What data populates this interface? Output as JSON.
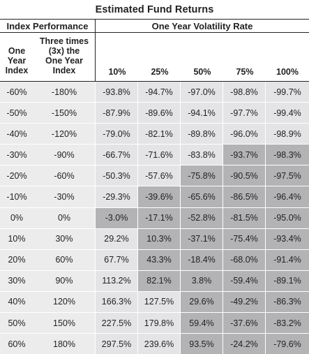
{
  "title": "Estimated Fund Returns",
  "group_index": "Index Performance",
  "group_vol": "One Year Volatility Rate",
  "col_index": [
    "One",
    "Year",
    "Index"
  ],
  "col_index3x": [
    "Three times",
    "(3x) the",
    "One Year",
    "Index"
  ],
  "vol_headers": [
    "10%",
    "25%",
    "50%",
    "75%",
    "100%"
  ],
  "rows": [
    {
      "idx": "-60%",
      "idx3": "-180%",
      "v": [
        "-93.8%",
        "-94.7%",
        "-97.0%",
        "-98.8%",
        "-99.7%"
      ],
      "s": [
        "l",
        "l",
        "l",
        "l",
        "l"
      ]
    },
    {
      "idx": "-50%",
      "idx3": "-150%",
      "v": [
        "-87.9%",
        "-89.6%",
        "-94.1%",
        "-97.7%",
        "-99.4%"
      ],
      "s": [
        "l",
        "l",
        "l",
        "l",
        "l"
      ]
    },
    {
      "idx": "-40%",
      "idx3": "-120%",
      "v": [
        "-79.0%",
        "-82.1%",
        "-89.8%",
        "-96.0%",
        "-98.9%"
      ],
      "s": [
        "l",
        "l",
        "l",
        "l",
        "l"
      ]
    },
    {
      "idx": "-30%",
      "idx3": "-90%",
      "v": [
        "-66.7%",
        "-71.6%",
        "-83.8%",
        "-93.7%",
        "-98.3%"
      ],
      "s": [
        "l",
        "l",
        "l",
        "d",
        "d"
      ]
    },
    {
      "idx": "-20%",
      "idx3": "-60%",
      "v": [
        "-50.3%",
        "-57.6%",
        "-75.8%",
        "-90.5%",
        "-97.5%"
      ],
      "s": [
        "l",
        "l",
        "d",
        "d",
        "d"
      ]
    },
    {
      "idx": "-10%",
      "idx3": "-30%",
      "v": [
        "-29.3%",
        "-39.6%",
        "-65.6%",
        "-86.5%",
        "-96.4%"
      ],
      "s": [
        "l",
        "d",
        "d",
        "d",
        "d"
      ]
    },
    {
      "idx": "0%",
      "idx3": "0%",
      "v": [
        "-3.0%",
        "-17.1%",
        "-52.8%",
        "-81.5%",
        "-95.0%"
      ],
      "s": [
        "d",
        "d",
        "d",
        "d",
        "d"
      ]
    },
    {
      "idx": "10%",
      "idx3": "30%",
      "v": [
        "29.2%",
        "10.3%",
        "-37.1%",
        "-75.4%",
        "-93.4%"
      ],
      "s": [
        "l",
        "d",
        "d",
        "d",
        "d"
      ]
    },
    {
      "idx": "20%",
      "idx3": "60%",
      "v": [
        "67.7%",
        "43.3%",
        "-18.4%",
        "-68.0%",
        "-91.4%"
      ],
      "s": [
        "l",
        "d",
        "d",
        "d",
        "d"
      ]
    },
    {
      "idx": "30%",
      "idx3": "90%",
      "v": [
        "113.2%",
        "82.1%",
        "3.8%",
        "-59.4%",
        "-89.1%"
      ],
      "s": [
        "l",
        "d",
        "d",
        "d",
        "d"
      ]
    },
    {
      "idx": "40%",
      "idx3": "120%",
      "v": [
        "166.3%",
        "127.5%",
        "29.6%",
        "-49.2%",
        "-86.3%"
      ],
      "s": [
        "l",
        "l",
        "d",
        "d",
        "d"
      ]
    },
    {
      "idx": "50%",
      "idx3": "150%",
      "v": [
        "227.5%",
        "179.8%",
        "59.4%",
        "-37.6%",
        "-83.2%"
      ],
      "s": [
        "l",
        "l",
        "d",
        "d",
        "d"
      ]
    },
    {
      "idx": "60%",
      "idx3": "180%",
      "v": [
        "297.5%",
        "239.6%",
        "93.5%",
        "-24.2%",
        "-79.6%"
      ],
      "s": [
        "l",
        "l",
        "d",
        "d",
        "d"
      ]
    }
  ],
  "shade_colors": {
    "l": "#e4e4e6",
    "d": "#b3b3b6"
  }
}
